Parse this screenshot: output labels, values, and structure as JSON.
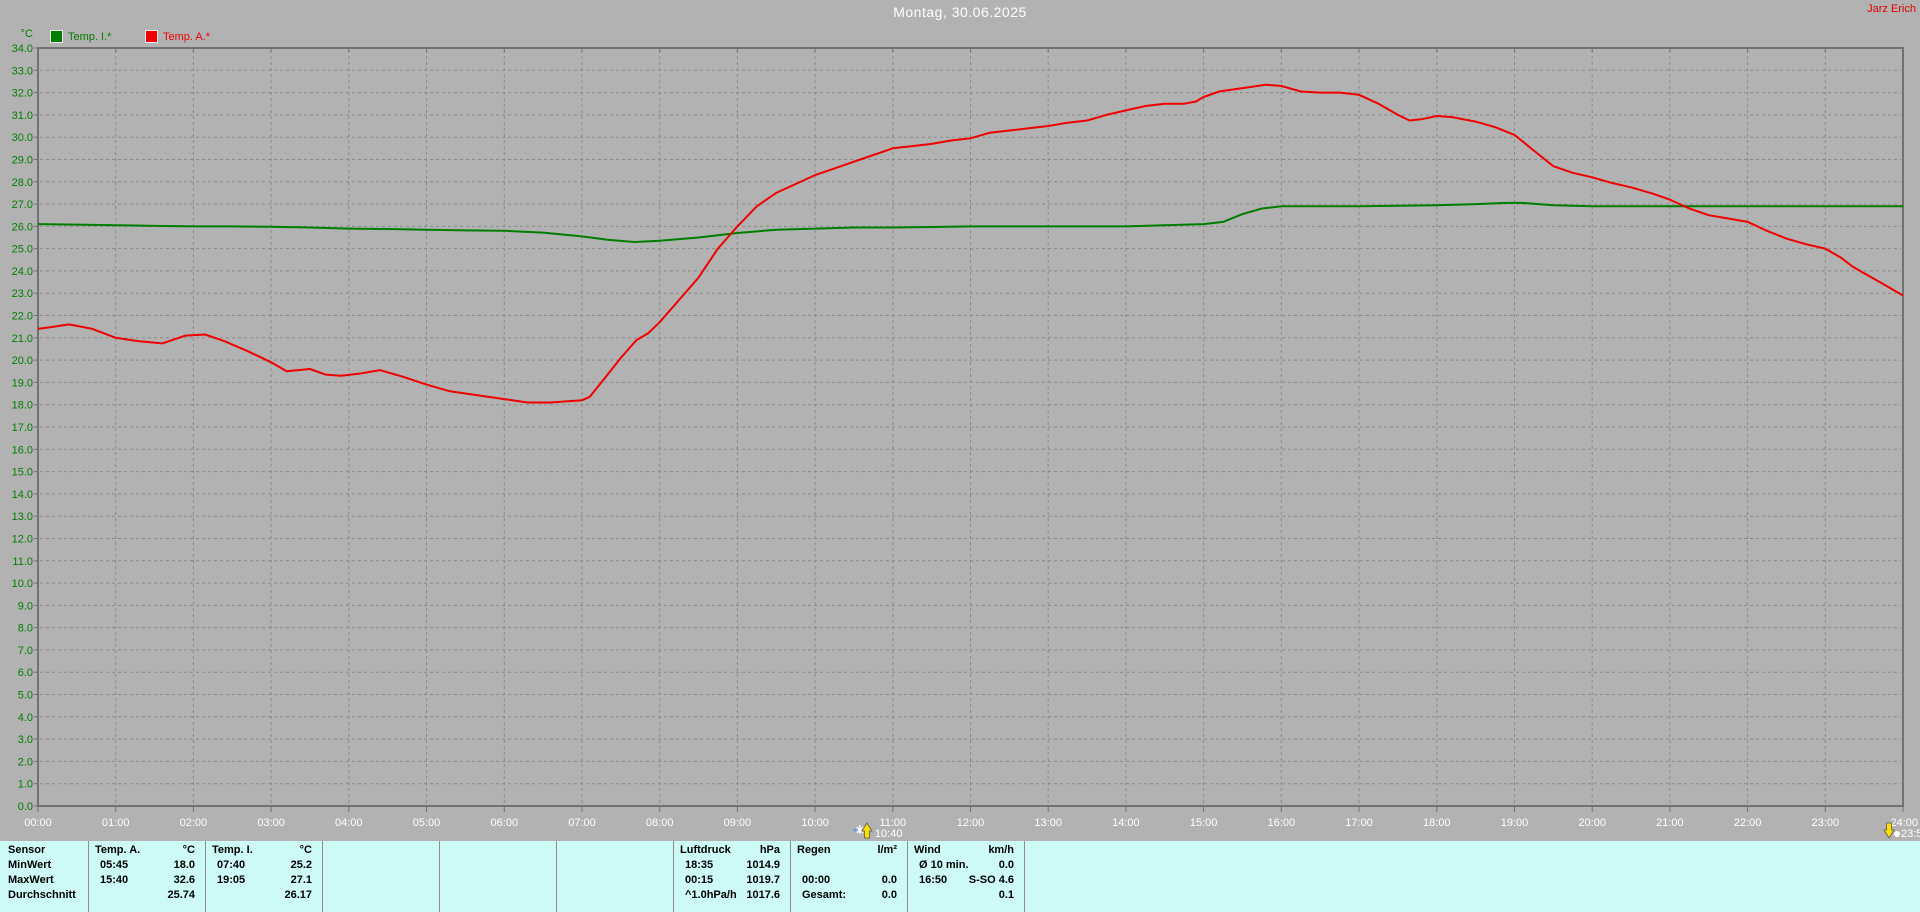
{
  "window": {
    "title": "Montag, 30.06.2025",
    "author": "Jarz Erich"
  },
  "y_axis_unit": "°C",
  "legend": [
    {
      "label": "Temp. I.*",
      "color": "#007d00"
    },
    {
      "label": "Temp. A.*",
      "color": "#f00000"
    }
  ],
  "colors": {
    "background": "#b2b2b2",
    "grid": "#8a8a8a",
    "frame": "#717171",
    "axis_text": "#ffffff",
    "y_label_text": "#007d00",
    "title_text": "#ffffff",
    "author_text": "#e00000",
    "table_background": "#cdfaf7",
    "table_divider": "#8f8f8f",
    "marker_yellow": "#ffdf00",
    "marker_blue": "#4aa0ff"
  },
  "markers": [
    {
      "label": "10:40",
      "hour": 10.667,
      "arrow": "up"
    },
    {
      "label": "23:5",
      "hour": 23.82,
      "arrow": "down"
    }
  ],
  "chart_data": {
    "type": "line",
    "title": "Montag, 30.06.2025",
    "xlabel": "",
    "ylabel": "°C",
    "xlim_hours": [
      0,
      24
    ],
    "ylim": [
      0,
      34
    ],
    "x_tick_interval_hours": 1,
    "y_tick_interval": 1,
    "grid": true,
    "legend_position": "top-left",
    "series": [
      {
        "id": "temp-i",
        "name": "Temp. I.*",
        "color": "#007d00",
        "points": [
          [
            0,
            26.1
          ],
          [
            0.5,
            26.08
          ],
          [
            1,
            26.05
          ],
          [
            1.5,
            26.02
          ],
          [
            2,
            26.0
          ],
          [
            2.5,
            26.0
          ],
          [
            3,
            25.98
          ],
          [
            3.5,
            25.95
          ],
          [
            4,
            25.9
          ],
          [
            4.5,
            25.88
          ],
          [
            5,
            25.85
          ],
          [
            5.5,
            25.82
          ],
          [
            6,
            25.8
          ],
          [
            6.5,
            25.72
          ],
          [
            7,
            25.55
          ],
          [
            7.33,
            25.4
          ],
          [
            7.67,
            25.3
          ],
          [
            8,
            25.35
          ],
          [
            8.5,
            25.5
          ],
          [
            9,
            25.7
          ],
          [
            9.5,
            25.85
          ],
          [
            10,
            25.9
          ],
          [
            10.5,
            25.95
          ],
          [
            11,
            25.95
          ],
          [
            11.5,
            25.97
          ],
          [
            12,
            26.0
          ],
          [
            12.5,
            26.0
          ],
          [
            13,
            26.0
          ],
          [
            13.5,
            26.0
          ],
          [
            14,
            26.0
          ],
          [
            14.5,
            26.05
          ],
          [
            15,
            26.1
          ],
          [
            15.25,
            26.2
          ],
          [
            15.5,
            26.55
          ],
          [
            15.75,
            26.8
          ],
          [
            16,
            26.9
          ],
          [
            16.5,
            26.9
          ],
          [
            17,
            26.9
          ],
          [
            17.5,
            26.92
          ],
          [
            18,
            26.95
          ],
          [
            18.5,
            27.0
          ],
          [
            18.9,
            27.05
          ],
          [
            19.1,
            27.05
          ],
          [
            19.5,
            26.95
          ],
          [
            20,
            26.9
          ],
          [
            21,
            26.9
          ],
          [
            22,
            26.9
          ],
          [
            23,
            26.9
          ],
          [
            24,
            26.9
          ]
        ]
      },
      {
        "id": "temp-a",
        "name": "Temp. A.*",
        "color": "#f00000",
        "points": [
          [
            0,
            21.4
          ],
          [
            0.2,
            21.5
          ],
          [
            0.4,
            21.6
          ],
          [
            0.7,
            21.4
          ],
          [
            1,
            21.0
          ],
          [
            1.3,
            20.85
          ],
          [
            1.6,
            20.75
          ],
          [
            1.9,
            21.1
          ],
          [
            2.15,
            21.15
          ],
          [
            2.4,
            20.85
          ],
          [
            2.7,
            20.4
          ],
          [
            3,
            19.9
          ],
          [
            3.2,
            19.5
          ],
          [
            3.5,
            19.6
          ],
          [
            3.7,
            19.35
          ],
          [
            3.9,
            19.3
          ],
          [
            4.15,
            19.4
          ],
          [
            4.4,
            19.55
          ],
          [
            4.7,
            19.25
          ],
          [
            5,
            18.9
          ],
          [
            5.3,
            18.6
          ],
          [
            5.7,
            18.4
          ],
          [
            6,
            18.25
          ],
          [
            6.3,
            18.1
          ],
          [
            6.6,
            18.1
          ],
          [
            7,
            18.2
          ],
          [
            7.1,
            18.35
          ],
          [
            7.25,
            19.0
          ],
          [
            7.5,
            20.1
          ],
          [
            7.7,
            20.9
          ],
          [
            7.85,
            21.2
          ],
          [
            8,
            21.7
          ],
          [
            8.25,
            22.7
          ],
          [
            8.5,
            23.7
          ],
          [
            8.75,
            25.0
          ],
          [
            9,
            26.0
          ],
          [
            9.25,
            26.9
          ],
          [
            9.5,
            27.5
          ],
          [
            9.75,
            27.9
          ],
          [
            10,
            28.3
          ],
          [
            10.25,
            28.6
          ],
          [
            10.5,
            28.9
          ],
          [
            10.75,
            29.2
          ],
          [
            11,
            29.5
          ],
          [
            11.25,
            29.6
          ],
          [
            11.5,
            29.7
          ],
          [
            11.75,
            29.85
          ],
          [
            12,
            29.95
          ],
          [
            12.25,
            30.2
          ],
          [
            12.5,
            30.3
          ],
          [
            12.75,
            30.4
          ],
          [
            13,
            30.5
          ],
          [
            13.25,
            30.65
          ],
          [
            13.5,
            30.75
          ],
          [
            13.75,
            31.0
          ],
          [
            14,
            31.2
          ],
          [
            14.25,
            31.4
          ],
          [
            14.5,
            31.5
          ],
          [
            14.75,
            31.5
          ],
          [
            14.9,
            31.6
          ],
          [
            15,
            31.8
          ],
          [
            15.2,
            32.05
          ],
          [
            15.4,
            32.15
          ],
          [
            15.6,
            32.25
          ],
          [
            15.8,
            32.35
          ],
          [
            16,
            32.3
          ],
          [
            16.25,
            32.05
          ],
          [
            16.5,
            32.0
          ],
          [
            16.75,
            32.0
          ],
          [
            17,
            31.9
          ],
          [
            17.25,
            31.5
          ],
          [
            17.5,
            31.0
          ],
          [
            17.65,
            30.75
          ],
          [
            17.8,
            30.8
          ],
          [
            18,
            30.95
          ],
          [
            18.2,
            30.9
          ],
          [
            18.5,
            30.7
          ],
          [
            18.75,
            30.45
          ],
          [
            19,
            30.1
          ],
          [
            19.25,
            29.4
          ],
          [
            19.5,
            28.7
          ],
          [
            19.75,
            28.4
          ],
          [
            20,
            28.2
          ],
          [
            20.25,
            27.95
          ],
          [
            20.5,
            27.75
          ],
          [
            20.75,
            27.5
          ],
          [
            21,
            27.2
          ],
          [
            21.25,
            26.8
          ],
          [
            21.5,
            26.5
          ],
          [
            21.75,
            26.35
          ],
          [
            22,
            26.2
          ],
          [
            22.25,
            25.8
          ],
          [
            22.5,
            25.45
          ],
          [
            22.75,
            25.2
          ],
          [
            23,
            25.0
          ],
          [
            23.2,
            24.6
          ],
          [
            23.35,
            24.2
          ],
          [
            23.5,
            23.9
          ],
          [
            23.75,
            23.4
          ],
          [
            24,
            22.9
          ]
        ]
      }
    ]
  },
  "table": {
    "row_labels": [
      "Sensor",
      "MinWert",
      "MaxWert",
      "Durchschnitt"
    ],
    "groups": [
      {
        "slot": 0,
        "name": "Temp. A.",
        "unit": "°C",
        "cells": [
          [
            "05:45",
            "18.0"
          ],
          [
            "15:40",
            "32.6"
          ],
          [
            "",
            "25.74"
          ]
        ]
      },
      {
        "slot": 1,
        "name": "Temp. I.",
        "unit": "°C",
        "cells": [
          [
            "07:40",
            "25.2"
          ],
          [
            "19:05",
            "27.1"
          ],
          [
            "",
            "26.17"
          ]
        ]
      },
      {
        "slot": 5,
        "name": "Luftdruck",
        "unit": "hPa",
        "cells": [
          [
            "18:35",
            "1014.9"
          ],
          [
            "00:15",
            "1019.7"
          ],
          [
            "^1.0hPa/h",
            "1017.6"
          ]
        ]
      },
      {
        "slot": 6,
        "name": "Regen",
        "unit": "l/m²",
        "cells": [
          [
            "",
            ""
          ],
          [
            "00:00",
            "0.0"
          ],
          [
            "Gesamt:",
            "0.0"
          ]
        ]
      },
      {
        "slot": 7,
        "name": "Wind",
        "unit": "km/h",
        "cells": [
          [
            "Ø 10 min.",
            "0.0"
          ],
          [
            "16:50",
            "S-SO 4.6"
          ],
          [
            "",
            "0.1"
          ]
        ]
      }
    ]
  }
}
